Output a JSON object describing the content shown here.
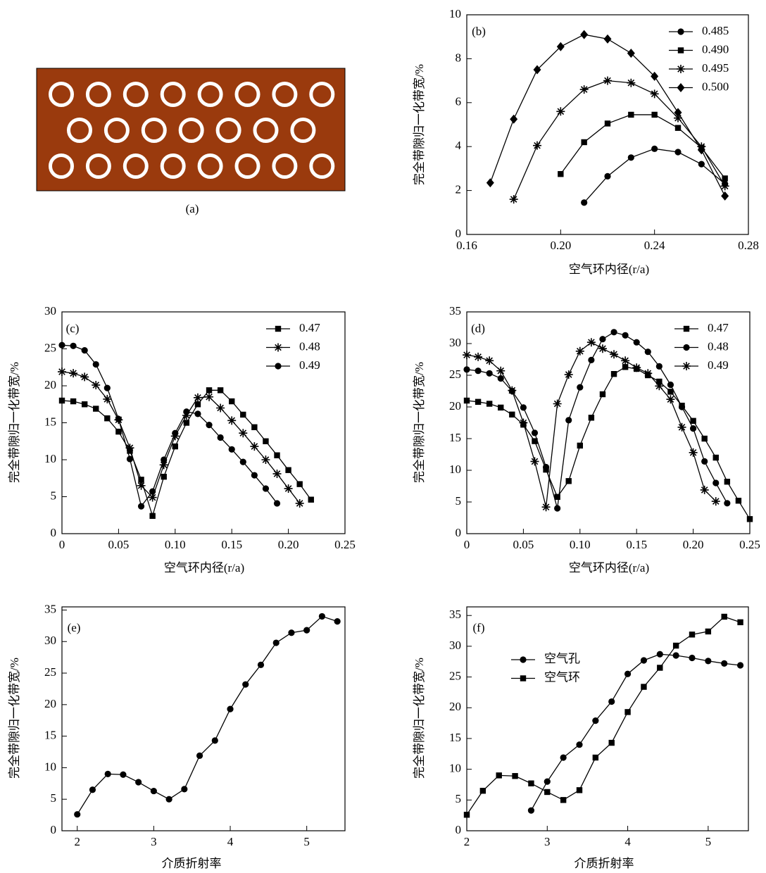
{
  "chart_data": [
    {
      "type": "schematic",
      "label": "(a)"
    },
    {
      "type": "line",
      "label": "(b)",
      "x_label": "空气环内径(r/a)",
      "y_label": "完全带隙归一化带宽/%",
      "xlim": [
        0.16,
        0.28
      ],
      "ylim": [
        0,
        10
      ],
      "xticks": [
        0.16,
        {
          "value": 0.2,
          "label": "0.20"
        },
        0.24,
        0.28
      ],
      "yticks": [
        0,
        2,
        4,
        6,
        8,
        10
      ],
      "legend_position": "top-right",
      "series": [
        {
          "name": "0.485",
          "color": "#000000",
          "marker": "circle",
          "x": [
            0.21,
            0.22,
            0.23,
            0.24,
            0.25,
            0.26,
            0.27
          ],
          "values": [
            1.45,
            2.65,
            3.5,
            3.9,
            3.75,
            3.2,
            2.3
          ]
        },
        {
          "name": "0.490",
          "color": "#000000",
          "marker": "square",
          "x": [
            0.2,
            0.21,
            0.22,
            0.23,
            0.24,
            0.25,
            0.26,
            0.27
          ],
          "values": [
            2.75,
            4.2,
            5.05,
            5.45,
            5.45,
            4.85,
            3.95,
            2.55
          ]
        },
        {
          "name": "0.495",
          "color": "#000000",
          "marker": "star",
          "x": [
            0.18,
            0.19,
            0.2,
            0.21,
            0.22,
            0.23,
            0.24,
            0.25,
            0.26,
            0.27
          ],
          "values": [
            1.6,
            4.05,
            5.6,
            6.6,
            7.0,
            6.9,
            6.4,
            5.3,
            4.0,
            2.2
          ]
        },
        {
          "name": "0.500",
          "color": "#000000",
          "marker": "diamond",
          "x": [
            0.17,
            0.18,
            0.19,
            0.2,
            0.21,
            0.22,
            0.23,
            0.24,
            0.25,
            0.26,
            0.27
          ],
          "values": [
            2.35,
            5.25,
            7.5,
            8.55,
            9.1,
            8.9,
            8.25,
            7.2,
            5.55,
            3.85,
            1.75
          ]
        }
      ]
    },
    {
      "type": "line",
      "label": "(c)",
      "x_label": "空气环内径(r/a)",
      "y_label": "完全带隙归一化带宽/%",
      "xlim": [
        0,
        0.25
      ],
      "ylim": [
        0,
        30
      ],
      "xticks": [
        0,
        0.05,
        {
          "value": 0.1,
          "label": "0.10"
        },
        0.15,
        {
          "value": 0.2,
          "label": "0.20"
        },
        0.25
      ],
      "yticks": [
        0,
        5,
        10,
        15,
        20,
        25,
        30
      ],
      "legend_position": "top-right",
      "series": [
        {
          "name": "0.47",
          "color": "#000000",
          "marker": "square",
          "x": [
            0,
            0.01,
            0.02,
            0.03,
            0.04,
            0.05,
            0.06,
            0.07,
            0.08,
            0.09,
            0.1,
            0.11,
            0.12,
            0.13,
            0.14,
            0.15,
            0.16,
            0.17,
            0.18,
            0.19,
            0.2,
            0.21,
            0.22
          ],
          "values": [
            18.0,
            17.9,
            17.5,
            16.9,
            15.6,
            13.8,
            11.2,
            7.3,
            2.4,
            7.7,
            11.8,
            15.0,
            17.5,
            19.4,
            19.4,
            17.9,
            16.1,
            14.4,
            12.5,
            10.6,
            8.6,
            6.7,
            4.6
          ]
        },
        {
          "name": "0.48",
          "color": "#000000",
          "marker": "star",
          "x": [
            0,
            0.01,
            0.02,
            0.03,
            0.04,
            0.05,
            0.06,
            0.07,
            0.08,
            0.09,
            0.1,
            0.11,
            0.12,
            0.13,
            0.14,
            0.15,
            0.16,
            0.17,
            0.18,
            0.19,
            0.2,
            0.21
          ],
          "values": [
            21.9,
            21.7,
            21.2,
            20.1,
            18.2,
            15.4,
            11.6,
            6.5,
            4.9,
            9.3,
            13.2,
            16.0,
            18.4,
            18.5,
            17.0,
            15.3,
            13.6,
            11.8,
            10.0,
            8.1,
            6.1,
            4.1
          ]
        },
        {
          "name": "0.49",
          "color": "#000000",
          "marker": "circle",
          "x": [
            0,
            0.01,
            0.02,
            0.03,
            0.04,
            0.05,
            0.06,
            0.07,
            0.08,
            0.09,
            0.1,
            0.11,
            0.12,
            0.13,
            0.14,
            0.15,
            0.16,
            0.17,
            0.18,
            0.19
          ],
          "values": [
            25.5,
            25.4,
            24.8,
            22.9,
            19.7,
            15.5,
            10.1,
            3.7,
            5.7,
            10.0,
            13.6,
            16.5,
            16.2,
            14.7,
            13.0,
            11.4,
            9.7,
            7.9,
            6.1,
            4.1
          ]
        }
      ]
    },
    {
      "type": "line",
      "label": "(d)",
      "x_label": "空气环内径(r/a)",
      "y_label": "完全带隙归一化带宽/%",
      "xlim": [
        0,
        0.25
      ],
      "ylim": [
        0,
        35
      ],
      "xticks": [
        0,
        0.05,
        {
          "value": 0.1,
          "label": "0.10"
        },
        0.15,
        {
          "value": 0.2,
          "label": "0.20"
        },
        0.25
      ],
      "yticks": [
        0,
        5,
        10,
        15,
        20,
        25,
        30,
        35
      ],
      "legend_position": "top-right",
      "series": [
        {
          "name": "0.47",
          "color": "#000000",
          "marker": "square",
          "x": [
            0,
            0.01,
            0.02,
            0.03,
            0.04,
            0.05,
            0.06,
            0.07,
            0.08,
            0.09,
            0.1,
            0.11,
            0.12,
            0.13,
            0.14,
            0.15,
            0.16,
            0.17,
            0.18,
            0.19,
            0.2,
            0.21,
            0.22,
            0.23,
            0.24,
            0.25
          ],
          "values": [
            21.0,
            20.8,
            20.5,
            19.9,
            18.8,
            17.2,
            14.6,
            10.1,
            5.8,
            8.3,
            13.9,
            18.3,
            22.0,
            25.2,
            26.3,
            26.0,
            25.0,
            24.0,
            22.4,
            20.2,
            17.8,
            15.0,
            12.0,
            8.2,
            5.2,
            2.3
          ]
        },
        {
          "name": "0.48",
          "color": "#000000",
          "marker": "circle",
          "x": [
            0,
            0.01,
            0.02,
            0.03,
            0.04,
            0.05,
            0.06,
            0.07,
            0.08,
            0.09,
            0.1,
            0.11,
            0.12,
            0.13,
            0.14,
            0.15,
            0.16,
            0.17,
            0.18,
            0.19,
            0.2,
            0.21,
            0.22,
            0.23
          ],
          "values": [
            25.9,
            25.7,
            25.3,
            24.5,
            22.5,
            19.9,
            15.9,
            10.5,
            4.0,
            17.9,
            23.1,
            27.4,
            30.7,
            31.8,
            31.3,
            30.2,
            28.7,
            26.4,
            23.5,
            20.0,
            16.6,
            11.4,
            8.0,
            4.8
          ]
        },
        {
          "name": "0.49",
          "color": "#000000",
          "marker": "star",
          "x": [
            0,
            0.01,
            0.02,
            0.03,
            0.04,
            0.05,
            0.06,
            0.07,
            0.08,
            0.09,
            0.1,
            0.11,
            0.12,
            0.13,
            0.14,
            0.15,
            0.16,
            0.17,
            0.18,
            0.19,
            0.2,
            0.21,
            0.22
          ],
          "values": [
            28.2,
            27.9,
            27.3,
            25.7,
            22.6,
            17.5,
            11.4,
            4.2,
            20.5,
            25.1,
            28.8,
            30.2,
            29.2,
            28.3,
            27.3,
            26.2,
            25.3,
            23.3,
            21.2,
            16.8,
            12.8,
            6.9,
            5.1
          ]
        }
      ]
    },
    {
      "type": "line",
      "label": "(e)",
      "x_label": "介质折射率",
      "y_label": "完全带隙归一化带宽/%",
      "xlim": [
        1.8,
        5.5
      ],
      "ylim": [
        0,
        35.5
      ],
      "xticks": [
        2,
        3,
        4,
        5
      ],
      "yticks": [
        0,
        5,
        10,
        15,
        20,
        25,
        30,
        35
      ],
      "series": [
        {
          "color": "#000000",
          "marker": "circle",
          "x": [
            2.0,
            2.2,
            2.4,
            2.6,
            2.8,
            3.0,
            3.2,
            3.4,
            3.6,
            3.8,
            4.0,
            4.2,
            4.4,
            4.6,
            4.8,
            5.0,
            5.2,
            5.4
          ],
          "values": [
            2.6,
            6.5,
            9.0,
            8.9,
            7.7,
            6.3,
            5.0,
            6.6,
            11.9,
            14.3,
            19.3,
            23.2,
            26.3,
            29.8,
            31.4,
            31.8,
            34.0,
            33.2
          ]
        }
      ]
    },
    {
      "type": "line",
      "label": "(f)",
      "x_label": "介质折射率",
      "y_label": "完全带隙归一化带宽/%",
      "xlim": [
        2,
        5.5
      ],
      "ylim": [
        0,
        36.4
      ],
      "xticks": [
        2,
        3,
        4,
        5
      ],
      "yticks": [
        0,
        5,
        10,
        15,
        20,
        25,
        30,
        35
      ],
      "legend_position": "center-left",
      "series": [
        {
          "name": "空气孔",
          "color": "#000000",
          "marker": "circle",
          "x": [
            2.8,
            3.0,
            3.2,
            3.4,
            3.6,
            3.8,
            4.0,
            4.2,
            4.4,
            4.6,
            4.8,
            5.0,
            5.2,
            5.4
          ],
          "values": [
            3.3,
            8.0,
            11.9,
            14.0,
            17.9,
            21.0,
            25.5,
            27.7,
            28.7,
            28.5,
            28.1,
            27.6,
            27.2,
            26.9
          ]
        },
        {
          "name": "空气环",
          "color": "#000000",
          "marker": "square",
          "x": [
            2.0,
            2.2,
            2.4,
            2.6,
            2.8,
            3.0,
            3.2,
            3.4,
            3.6,
            3.8,
            4.0,
            4.2,
            4.4,
            4.6,
            4.8,
            5.0,
            5.2,
            5.4
          ],
          "values": [
            2.6,
            6.5,
            9.0,
            8.9,
            7.7,
            6.3,
            5.0,
            6.6,
            11.9,
            14.3,
            19.3,
            23.4,
            26.5,
            30.1,
            31.9,
            32.4,
            34.8,
            33.9
          ]
        }
      ]
    }
  ]
}
